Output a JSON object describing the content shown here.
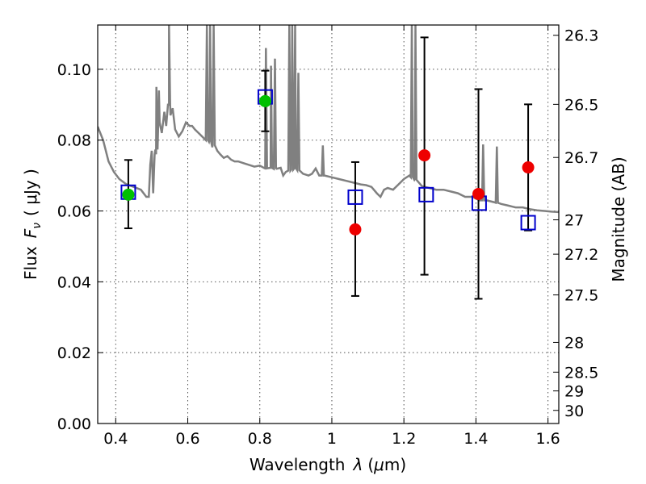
{
  "chart_data": {
    "type": "scatter",
    "xlabel": "Wavelength",
    "xlabel_symbol": "λ",
    "xlabel_unit_open": "(",
    "xlabel_unit_mu": "μ",
    "xlabel_unit_rest": "m)",
    "ylabel_left_word": "Flux",
    "ylabel_left_symbol": "F",
    "ylabel_left_sub": "ν",
    "ylabel_left_unit": "( μJy )",
    "ylabel_right": "Magnitude (AB)",
    "xlim": [
      0.35,
      1.63
    ],
    "ylim": [
      0.0,
      0.1125
    ],
    "grid": true,
    "x_ticks": [
      {
        "value": 0.4,
        "label": "0.4"
      },
      {
        "value": 0.6,
        "label": "0.6"
      },
      {
        "value": 0.8,
        "label": "0.8"
      },
      {
        "value": 1.0,
        "label": "1"
      },
      {
        "value": 1.2,
        "label": "1.2"
      },
      {
        "value": 1.4,
        "label": "1.4"
      },
      {
        "value": 1.6,
        "label": "1.6"
      }
    ],
    "y_ticks": [
      {
        "value": 0.0,
        "label": "0.00"
      },
      {
        "value": 0.02,
        "label": "0.02"
      },
      {
        "value": 0.04,
        "label": "0.04"
      },
      {
        "value": 0.06,
        "label": "0.06"
      },
      {
        "value": 0.08,
        "label": "0.08"
      },
      {
        "value": 0.1,
        "label": "0.10"
      }
    ],
    "right_ticks": [
      {
        "flux": 0.1096,
        "label": "26.3"
      },
      {
        "flux": 0.0901,
        "label": "26.5"
      },
      {
        "flux": 0.0751,
        "label": "26.7"
      },
      {
        "flux": 0.0575,
        "label": "27"
      },
      {
        "flux": 0.0478,
        "label": "27.2"
      },
      {
        "flux": 0.0363,
        "label": "27.5"
      },
      {
        "flux": 0.0229,
        "label": "28"
      },
      {
        "flux": 0.0145,
        "label": "28.5"
      },
      {
        "flux": 0.0092,
        "label": "29"
      },
      {
        "flux": 0.0037,
        "label": "30"
      }
    ],
    "observed_points": [
      {
        "x": 0.435,
        "y": 0.0646,
        "err_low": 0.0551,
        "err_high": 0.0744,
        "color": "#00c000"
      },
      {
        "x": 0.815,
        "y": 0.091,
        "err_low": 0.0825,
        "err_high": 0.0996,
        "color": "#00c000"
      },
      {
        "x": 1.065,
        "y": 0.0548,
        "err_low": 0.036,
        "err_high": 0.0738,
        "color": "#ee0000"
      },
      {
        "x": 1.257,
        "y": 0.0757,
        "err_low": 0.042,
        "err_high": 0.109,
        "color": "#ee0000"
      },
      {
        "x": 1.407,
        "y": 0.0648,
        "err_low": 0.0352,
        "err_high": 0.0944,
        "color": "#ee0000"
      },
      {
        "x": 1.545,
        "y": 0.0723,
        "err_low": 0.0545,
        "err_high": 0.0901,
        "color": "#ee0000"
      }
    ],
    "model_points": [
      {
        "x": 0.435,
        "y": 0.0653
      },
      {
        "x": 0.815,
        "y": 0.0922
      },
      {
        "x": 1.065,
        "y": 0.0639
      },
      {
        "x": 1.262,
        "y": 0.0646
      },
      {
        "x": 1.409,
        "y": 0.0622
      },
      {
        "x": 1.545,
        "y": 0.0567
      }
    ],
    "model_color": "#0000cc",
    "sed_color": "#808080",
    "sed_line": [
      [
        0.35,
        0.0838
      ],
      [
        0.365,
        0.08
      ],
      [
        0.38,
        0.074
      ],
      [
        0.395,
        0.071
      ],
      [
        0.41,
        0.069
      ],
      [
        0.43,
        0.0675
      ],
      [
        0.45,
        0.0668
      ],
      [
        0.47,
        0.066
      ],
      [
        0.485,
        0.064
      ],
      [
        0.492,
        0.064
      ],
      [
        0.496,
        0.073
      ],
      [
        0.5,
        0.077
      ],
      [
        0.504,
        0.065
      ],
      [
        0.508,
        0.076
      ],
      [
        0.512,
        0.076
      ],
      [
        0.518,
        0.084
      ],
      [
        0.52,
        0.094
      ],
      [
        0.522,
        0.085
      ],
      [
        0.528,
        0.082
      ],
      [
        0.535,
        0.088
      ],
      [
        0.54,
        0.084
      ],
      [
        0.548,
        0.09
      ],
      [
        0.552,
        0.087
      ],
      [
        0.558,
        0.089
      ],
      [
        0.565,
        0.083
      ],
      [
        0.575,
        0.081
      ],
      [
        0.585,
        0.0825
      ],
      [
        0.595,
        0.085
      ],
      [
        0.605,
        0.084
      ],
      [
        0.612,
        0.084
      ],
      [
        0.62,
        0.083
      ],
      [
        0.63,
        0.082
      ],
      [
        0.64,
        0.081
      ],
      [
        0.65,
        0.08
      ],
      [
        0.66,
        0.08
      ],
      [
        0.668,
        0.078
      ],
      [
        0.675,
        0.079
      ],
      [
        0.682,
        0.077
      ],
      [
        0.69,
        0.076
      ],
      [
        0.7,
        0.075
      ],
      [
        0.71,
        0.0755
      ],
      [
        0.72,
        0.0745
      ],
      [
        0.73,
        0.074
      ],
      [
        0.74,
        0.074
      ],
      [
        0.755,
        0.0735
      ],
      [
        0.77,
        0.073
      ],
      [
        0.785,
        0.0725
      ],
      [
        0.8,
        0.0728
      ],
      [
        0.815,
        0.072
      ],
      [
        0.83,
        0.0722
      ],
      [
        0.845,
        0.0718
      ],
      [
        0.858,
        0.0722
      ],
      [
        0.865,
        0.07
      ],
      [
        0.872,
        0.071
      ],
      [
        0.885,
        0.0715
      ],
      [
        0.9,
        0.072
      ],
      [
        0.92,
        0.0705
      ],
      [
        0.935,
        0.07
      ],
      [
        0.945,
        0.0705
      ],
      [
        0.955,
        0.072
      ],
      [
        0.965,
        0.07
      ],
      [
        0.98,
        0.07
      ],
      [
        1.0,
        0.0695
      ],
      [
        1.02,
        0.069
      ],
      [
        1.04,
        0.0685
      ],
      [
        1.06,
        0.068
      ],
      [
        1.08,
        0.0675
      ],
      [
        1.095,
        0.0673
      ],
      [
        1.11,
        0.0668
      ],
      [
        1.125,
        0.065
      ],
      [
        1.135,
        0.064
      ],
      [
        1.145,
        0.066
      ],
      [
        1.155,
        0.0665
      ],
      [
        1.17,
        0.066
      ],
      [
        1.185,
        0.0675
      ],
      [
        1.2,
        0.069
      ],
      [
        1.215,
        0.07
      ],
      [
        1.23,
        0.069
      ],
      [
        1.25,
        0.067
      ],
      [
        1.27,
        0.0665
      ],
      [
        1.29,
        0.066
      ],
      [
        1.31,
        0.066
      ],
      [
        1.33,
        0.0655
      ],
      [
        1.35,
        0.065
      ],
      [
        1.37,
        0.064
      ],
      [
        1.39,
        0.064
      ],
      [
        1.41,
        0.063
      ],
      [
        1.43,
        0.063
      ],
      [
        1.45,
        0.0625
      ],
      [
        1.47,
        0.062
      ],
      [
        1.49,
        0.0615
      ],
      [
        1.51,
        0.061
      ],
      [
        1.53,
        0.061
      ],
      [
        1.55,
        0.0605
      ],
      [
        1.57,
        0.0602
      ],
      [
        1.59,
        0.06
      ],
      [
        1.61,
        0.0598
      ],
      [
        1.63,
        0.0597
      ]
    ],
    "sed_emission_lines": [
      {
        "x": 0.513,
        "peak": 0.095
      },
      {
        "x": 0.548,
        "peak": 0.1125
      },
      {
        "x": 0.653,
        "peak": 0.1125
      },
      {
        "x": 0.662,
        "peak": 0.1125
      },
      {
        "x": 0.672,
        "peak": 0.1125
      },
      {
        "x": 0.817,
        "peak": 0.106
      },
      {
        "x": 0.831,
        "peak": 0.101
      },
      {
        "x": 0.842,
        "peak": 0.103
      },
      {
        "x": 0.882,
        "peak": 0.1125
      },
      {
        "x": 0.89,
        "peak": 0.1125
      },
      {
        "x": 0.898,
        "peak": 0.1125
      },
      {
        "x": 0.907,
        "peak": 0.099
      },
      {
        "x": 0.975,
        "peak": 0.0785
      },
      {
        "x": 1.222,
        "peak": 0.1125
      },
      {
        "x": 1.232,
        "peak": 0.1125
      },
      {
        "x": 1.42,
        "peak": 0.0788
      },
      {
        "x": 1.458,
        "peak": 0.0782
      }
    ]
  }
}
